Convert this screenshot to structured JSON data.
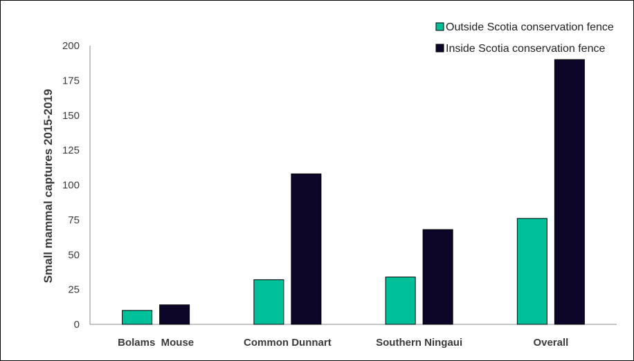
{
  "chart_data": {
    "type": "bar",
    "title": "",
    "xlabel": "",
    "ylabel": "Small mammal captures 2015-2019",
    "categories": [
      "Bolams  Mouse",
      "Common Dunnart",
      "Southern Ningaui",
      "Overall"
    ],
    "series": [
      {
        "name": "Outside Scotia conservation fence",
        "color": "#00c09a",
        "values": [
          10,
          32,
          34,
          76
        ]
      },
      {
        "name": "Inside Scotia conservation fence",
        "color": "#0d0628",
        "values": [
          14,
          108,
          68,
          190
        ]
      }
    ],
    "ylim": [
      0,
      200
    ],
    "yticks": [
      0,
      25,
      50,
      75,
      100,
      125,
      150,
      175,
      200
    ],
    "grid": false,
    "legend_position": "top-right",
    "bar_outline_color": "#000000"
  }
}
